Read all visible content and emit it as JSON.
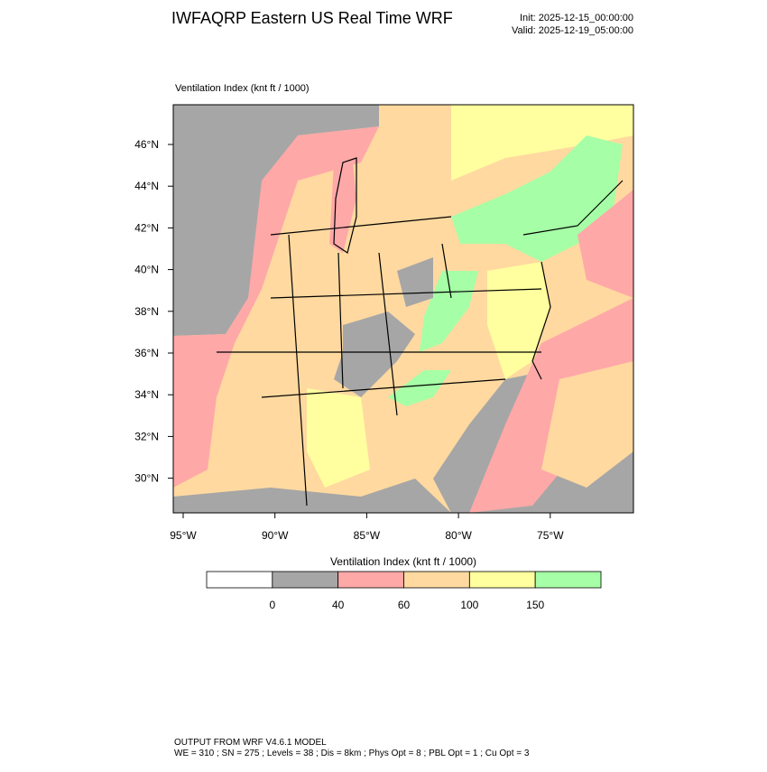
{
  "header": {
    "title": "IWFAQRP Eastern US Real Time WRF",
    "init": "Init: 2025-12-15_00:00:00",
    "valid": "Valid: 2025-12-19_05:00:00"
  },
  "map": {
    "field_label": "Ventilation Index   (knt ft / 1000)",
    "lat_labels": [
      "46°N",
      "44°N",
      "42°N",
      "40°N",
      "38°N",
      "36°N",
      "34°N",
      "32°N",
      "30°N"
    ],
    "lon_labels": [
      "95°W",
      "90°W",
      "85°W",
      "80°W",
      "75°W"
    ]
  },
  "colorbar": {
    "label": "Ventilation Index  (knt ft / 1000)",
    "colors": [
      "#ffffff",
      "#a6a6a6",
      "#ffa8a8",
      "#ffd9a0",
      "#ffff9f",
      "#a6ffa6"
    ],
    "ticks": [
      0,
      40,
      60,
      100,
      150
    ]
  },
  "footer": {
    "lines": [
      "OUTPUT FROM WRF V4.6.1 MODEL",
      "WE = 310 ; SN = 275 ; Levels = 38 ; Dis = 8km ; Phys Opt = 8 ; PBL Opt = 1 ; Cu Opt = 3"
    ]
  }
}
